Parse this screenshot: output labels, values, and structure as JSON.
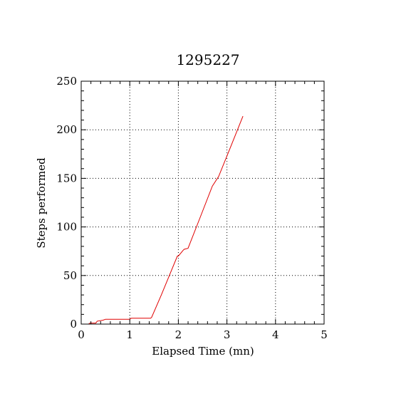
{
  "chart_data": {
    "type": "line",
    "title": "1295227",
    "xlabel": "Elapsed Time (mn)",
    "ylabel": "Steps performed",
    "xlim": [
      0,
      5
    ],
    "ylim": [
      0,
      250
    ],
    "xticks": [
      "0",
      "1",
      "2",
      "3",
      "4",
      "5"
    ],
    "yticks": [
      "0",
      "50",
      "100",
      "150",
      "200",
      "250"
    ],
    "grid": true,
    "series_color": "#e00000",
    "series": [
      {
        "x": [
          0,
          0.15,
          0.18,
          0.3,
          0.33,
          0.45,
          0.5,
          1.0,
          1.03,
          1.43,
          1.45,
          1.65,
          1.98,
          2.0,
          2.05,
          2.1,
          2.12,
          2.2,
          2.45,
          2.7,
          2.83,
          3.08,
          3.33
        ],
        "y": [
          0,
          0,
          1,
          1,
          3,
          4,
          5,
          5,
          6,
          6,
          7,
          30,
          70,
          70,
          73,
          76,
          77,
          78,
          110,
          142,
          152,
          183,
          214
        ]
      }
    ]
  }
}
